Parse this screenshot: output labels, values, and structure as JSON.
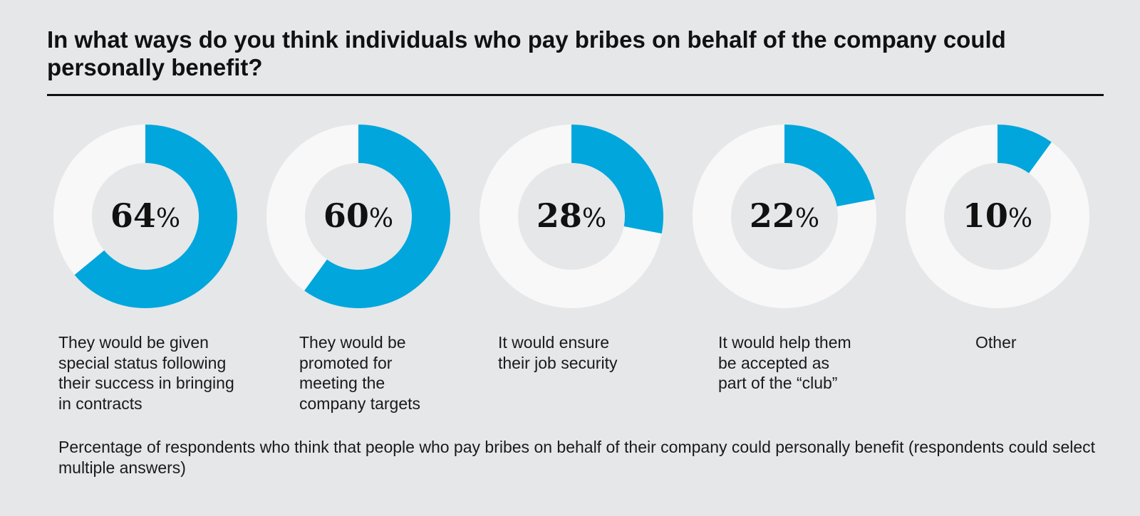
{
  "title": "In what ways do you think individuals who pay bribes on behalf of the company could personally benefit?",
  "footnote": "Percentage of respondents who think that people who pay bribes on behalf of their company could personally benefit (respondents could select multiple answers)",
  "colors": {
    "highlight": "#00a6dc",
    "track": "#f8f8f8",
    "background": "#e6e7e9"
  },
  "chart_data": {
    "type": "pie",
    "subtype": "donut-set",
    "unit": "%",
    "categories": [
      "They would be given special status following their success in bringing in contracts",
      "They would be promoted for meeting the company targets",
      "It would ensure their job security",
      "It would help them be accepted as part of the “club”",
      "Other"
    ],
    "values": [
      64,
      60,
      28,
      22,
      10
    ]
  },
  "labels": [
    "They would be given\nspecial status following\ntheir success in bringing\nin contracts",
    "They would be\npromoted for\nmeeting the\ncompany targets",
    "It would ensure\ntheir job security",
    "It would help them\nbe accepted as\npart of the “club”",
    "Other"
  ]
}
